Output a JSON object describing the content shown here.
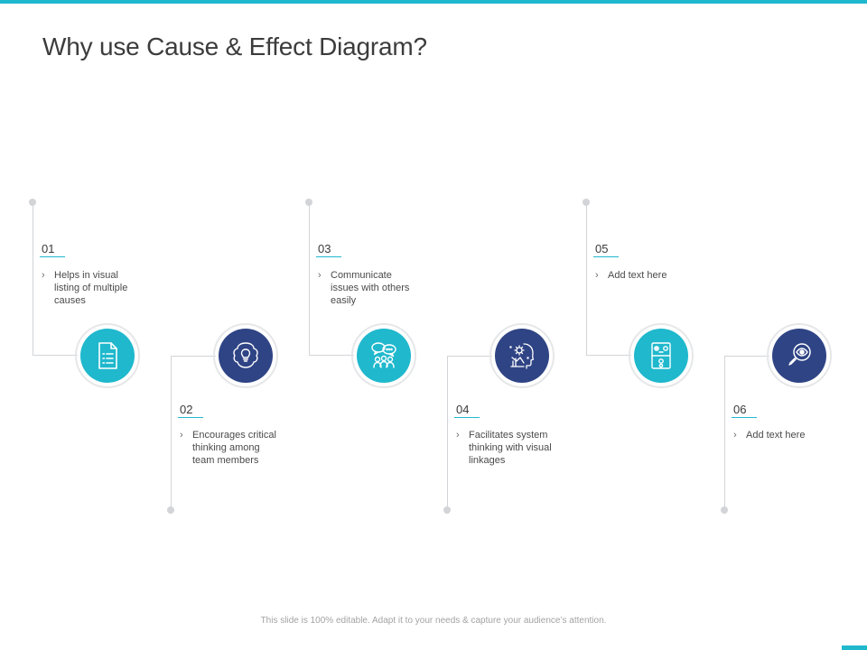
{
  "slide": {
    "title": "Why use Cause & Effect Diagram?",
    "footer": "This slide is 100% editable. Adapt it to your needs & capture your audience’s attention."
  },
  "colors": {
    "accent": "#1fb8cd",
    "navy": "#2f4485",
    "connector": "#d2d4d7"
  },
  "steps": [
    {
      "number": "01",
      "text": "Helps in visual listing of multiple causes",
      "icon": "checklist-document-icon",
      "color": "teal"
    },
    {
      "number": "02",
      "text": "Encourages critical thinking among team members",
      "icon": "brain-lightbulb-icon",
      "color": "navy"
    },
    {
      "number": "03",
      "text": "Communicate issues with others easily",
      "icon": "team-chat-icon",
      "color": "teal"
    },
    {
      "number": "04",
      "text": "Facilitates system thinking with visual linkages",
      "icon": "head-gear-chart-icon",
      "color": "navy"
    },
    {
      "number": "05",
      "text": "Add text here",
      "icon": "strategy-board-icon",
      "color": "teal"
    },
    {
      "number": "06",
      "text": "Add text here",
      "icon": "magnifier-eye-icon",
      "color": "navy"
    }
  ]
}
